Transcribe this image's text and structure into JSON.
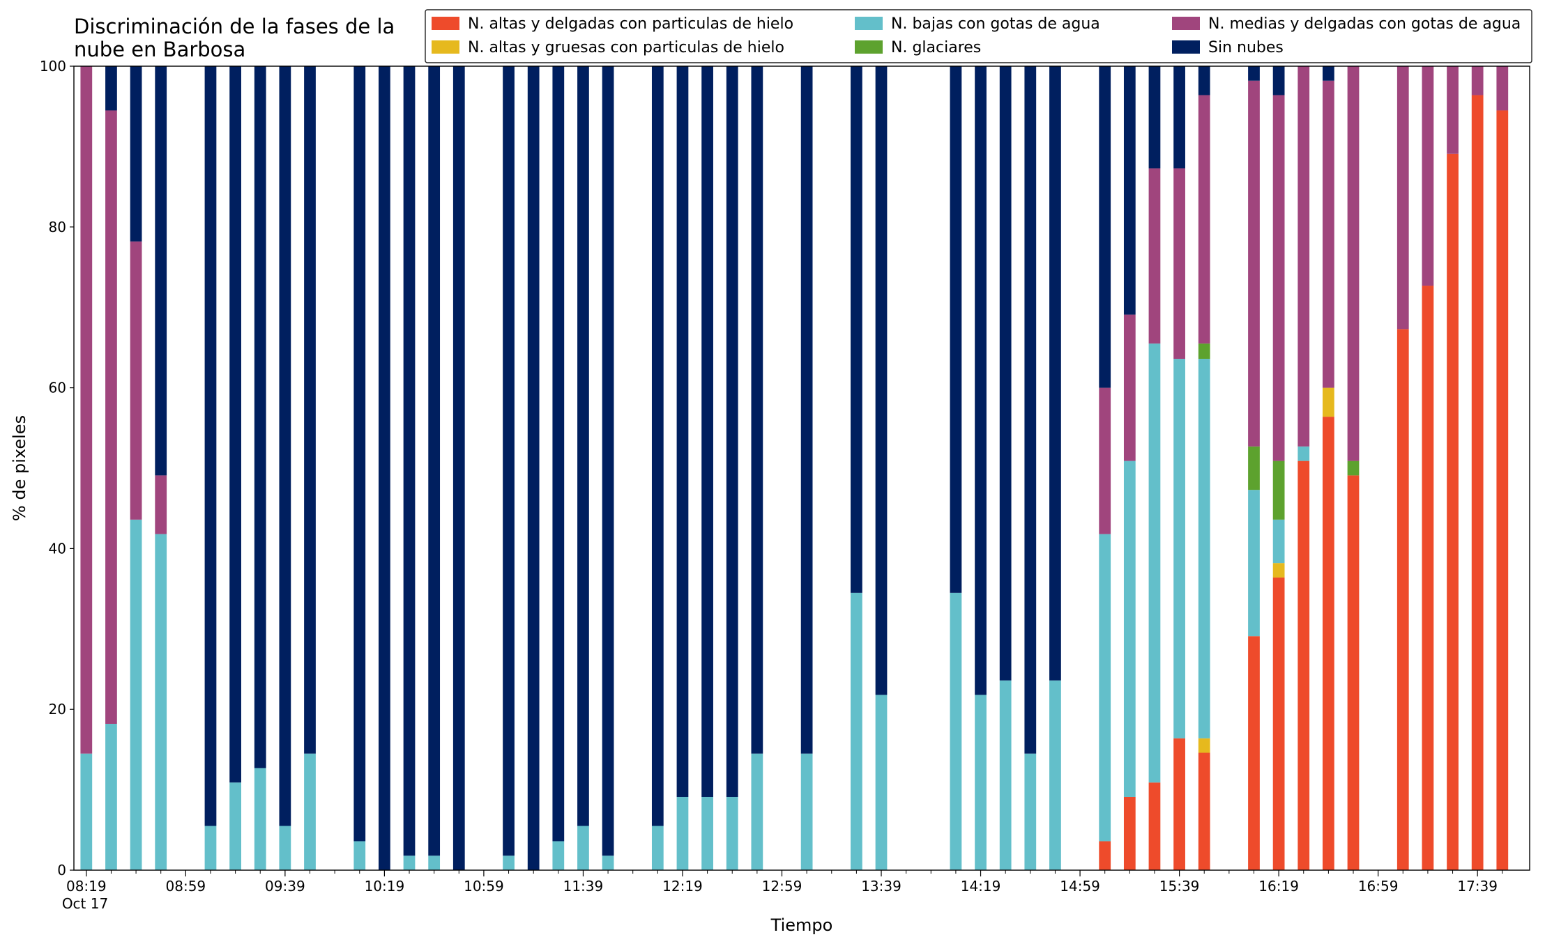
{
  "chart_data": {
    "type": "stacked_bar",
    "title": "Discriminación de la fases de la\nnube en Barbosa",
    "xlabel": "Tiempo",
    "ylabel": "% de pixeles",
    "x_sublabel": "Oct 17",
    "x": [
      "08:19",
      "08:29",
      "08:39",
      "08:49",
      "09:09",
      "09:19",
      "09:29",
      "09:39",
      "09:49",
      "10:09",
      "10:19",
      "10:29",
      "10:39",
      "10:49",
      "11:09",
      "11:19",
      "11:29",
      "11:39",
      "11:49",
      "12:09",
      "12:19",
      "12:29",
      "12:39",
      "12:49",
      "13:09",
      "13:29",
      "13:39",
      "14:09",
      "14:19",
      "14:29",
      "14:39",
      "14:49",
      "15:09",
      "15:19",
      "15:29",
      "15:39",
      "15:49",
      "16:09",
      "16:19",
      "16:29",
      "16:39",
      "16:49",
      "17:09",
      "17:19",
      "17:29",
      "17:39",
      "17:49"
    ],
    "xlim": [
      "08:14",
      "18:00"
    ],
    "xticks": [
      "08:19",
      "08:59",
      "09:39",
      "10:19",
      "10:59",
      "11:39",
      "12:19",
      "12:59",
      "13:39",
      "14:19",
      "14:59",
      "15:39",
      "16:19",
      "16:59",
      "17:39"
    ],
    "xminorticks": [
      "08:29",
      "08:39",
      "08:49",
      "09:09",
      "09:19",
      "09:29",
      "09:49",
      "09:59",
      "10:09",
      "10:29",
      "10:39",
      "10:49",
      "11:09",
      "11:19",
      "11:29",
      "11:49",
      "11:59",
      "12:09",
      "12:29",
      "12:39",
      "12:49",
      "13:09",
      "13:19",
      "13:29",
      "13:49",
      "13:59",
      "14:09",
      "14:29",
      "14:39",
      "14:49",
      "15:09",
      "15:19",
      "15:29",
      "15:49",
      "15:59",
      "16:09",
      "16:29",
      "16:39",
      "16:49",
      "17:09",
      "17:19",
      "17:29",
      "17:49"
    ],
    "ylim": [
      0,
      100
    ],
    "yticks": [
      0,
      20,
      40,
      60,
      80,
      100
    ],
    "series": [
      {
        "name": "N. altas y delgadas con particulas de hielo",
        "color": "#ee4b2b",
        "values": [
          0,
          0,
          0,
          0,
          0,
          0,
          0,
          0,
          0,
          0,
          0,
          0,
          0,
          0,
          0,
          0,
          0,
          0,
          0,
          0,
          0,
          0,
          0,
          0,
          0,
          0,
          0,
          0,
          0,
          0,
          0,
          0,
          3.6,
          9.1,
          10.9,
          16.4,
          14.6,
          29.1,
          36.4,
          50.9,
          56.4,
          49.1,
          67.3,
          72.7,
          89.1,
          96.4,
          94.5
        ]
      },
      {
        "name": "N. altas y gruesas con particulas de hielo",
        "color": "#e6b91e",
        "values": [
          0,
          0,
          0,
          0,
          0,
          0,
          0,
          0,
          0,
          0,
          0,
          0,
          0,
          0,
          0,
          0,
          0,
          0,
          0,
          0,
          0,
          0,
          0,
          0,
          0,
          0,
          0,
          0,
          0,
          0,
          0,
          0,
          0,
          0,
          0,
          0,
          1.8,
          0,
          1.8,
          0,
          3.6,
          0,
          0,
          0,
          0,
          0,
          0
        ]
      },
      {
        "name": "N. bajas con gotas de agua",
        "color": "#63bfca",
        "values": [
          14.5,
          18.2,
          43.6,
          41.8,
          5.5,
          10.9,
          12.7,
          5.5,
          14.5,
          3.6,
          0,
          1.8,
          1.8,
          0,
          1.8,
          0,
          3.6,
          5.5,
          1.8,
          5.5,
          9.1,
          9.1,
          9.1,
          14.5,
          14.5,
          34.5,
          21.8,
          34.5,
          21.8,
          23.6,
          14.5,
          23.6,
          38.2,
          41.8,
          54.6,
          47.2,
          47.2,
          18.2,
          5.4,
          1.8,
          0,
          0,
          0,
          0,
          0,
          0,
          0
        ]
      },
      {
        "name": "N. glaciares",
        "color": "#5da22e",
        "values": [
          0,
          0,
          0,
          0,
          0,
          0,
          0,
          0,
          0,
          0,
          0,
          0,
          0,
          0,
          0,
          0,
          0,
          0,
          0,
          0,
          0,
          0,
          0,
          0,
          0,
          0,
          0,
          0,
          0,
          0,
          0,
          0,
          0,
          0,
          0,
          0,
          1.9,
          5.4,
          7.3,
          0,
          0,
          1.8,
          0,
          0,
          0,
          0,
          0
        ]
      },
      {
        "name": "N. medias y delgadas con gotas de agua",
        "color": "#a0457d",
        "values": [
          85.5,
          76.3,
          34.6,
          7.3,
          0,
          0,
          0,
          0,
          0,
          0,
          0,
          0,
          0,
          0,
          0,
          0,
          0,
          0,
          0,
          0,
          0,
          0,
          0,
          0,
          0,
          0,
          0,
          0,
          0,
          0,
          0,
          0,
          18.2,
          18.2,
          21.8,
          23.7,
          30.9,
          45.5,
          45.5,
          47.3,
          38.2,
          49.1,
          32.7,
          27.3,
          10.9,
          3.6,
          5.5
        ]
      },
      {
        "name": "Sin nubes",
        "color": "#001f5f",
        "values": [
          0,
          5.5,
          21.8,
          50.9,
          94.5,
          89.1,
          87.3,
          94.5,
          85.5,
          96.4,
          100,
          98.2,
          98.2,
          100,
          98.2,
          100,
          96.4,
          94.5,
          98.2,
          94.5,
          90.9,
          90.9,
          90.9,
          85.5,
          85.5,
          65.5,
          78.2,
          65.5,
          78.2,
          76.4,
          85.5,
          76.4,
          40,
          30.9,
          12.7,
          12.7,
          3.6,
          1.8,
          3.6,
          0,
          1.8,
          0,
          0,
          0,
          0,
          0,
          0
        ]
      }
    ],
    "legend": "upper right"
  }
}
